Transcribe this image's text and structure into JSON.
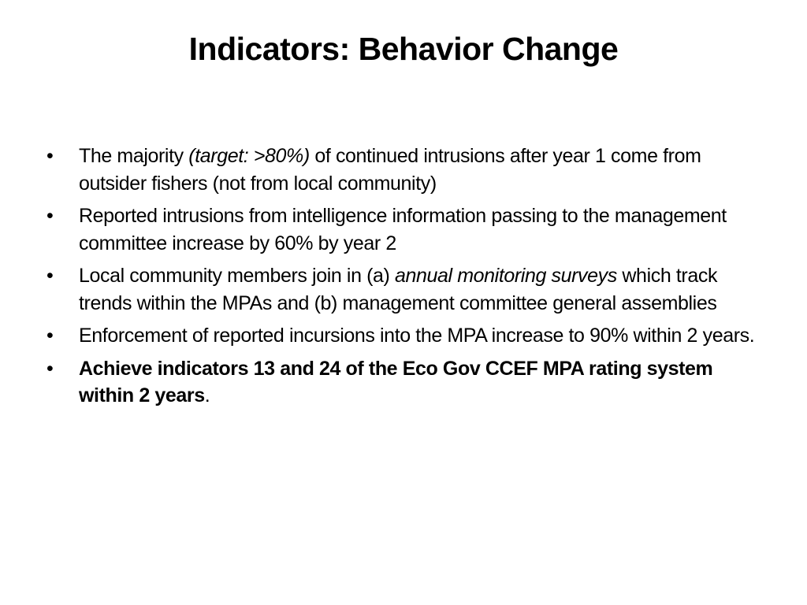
{
  "slide": {
    "title": "Indicators: Behavior Change",
    "bullet_glyph": "•",
    "bullets": [
      {
        "part1": "The majority ",
        "italic": "(target: >80%)",
        "part2": " of continued intrusions after year 1 come from outsider fishers (not from local community)"
      },
      {
        "text": "Reported intrusions from intelligence information passing to the management committee increase by 60% by year 2"
      },
      {
        "part1": "Local community members join in (a)  ",
        "italic": "annual monitoring surveys",
        "part2": " which track trends within the MPAs and (b) management committee general assemblies"
      },
      {
        "text": "Enforcement of reported incursions into the MPA increase to 90% within 2 years."
      },
      {
        "bold": "Achieve indicators 13 and 24 of the Eco Gov CCEF MPA rating system within 2 years",
        "tail": "."
      }
    ]
  }
}
